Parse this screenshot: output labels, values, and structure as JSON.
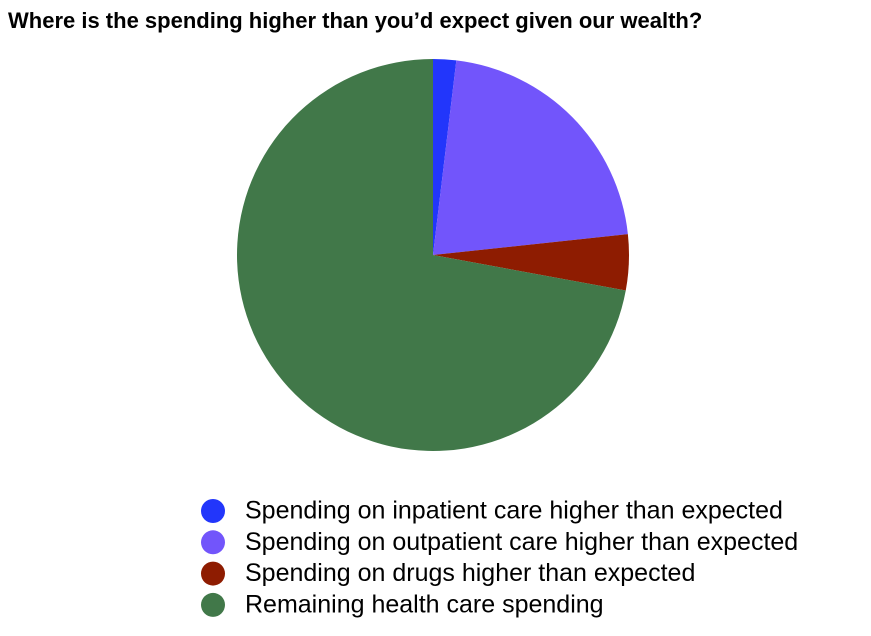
{
  "chart_data": {
    "type": "pie",
    "title": "Where is the spending higher than you’d expect given our wealth?",
    "categories": [
      "Spending on inpatient care higher than expected",
      "Spending on outpatient care higher than expected",
      "Spending on drugs higher than expected",
      "Remaining health care spending"
    ],
    "values": [
      1.9,
      21.4,
      4.6,
      72.1
    ],
    "colors": [
      "#2236fb",
      "#7255fb",
      "#8e1c01",
      "#417849"
    ],
    "legend": "bottom"
  }
}
